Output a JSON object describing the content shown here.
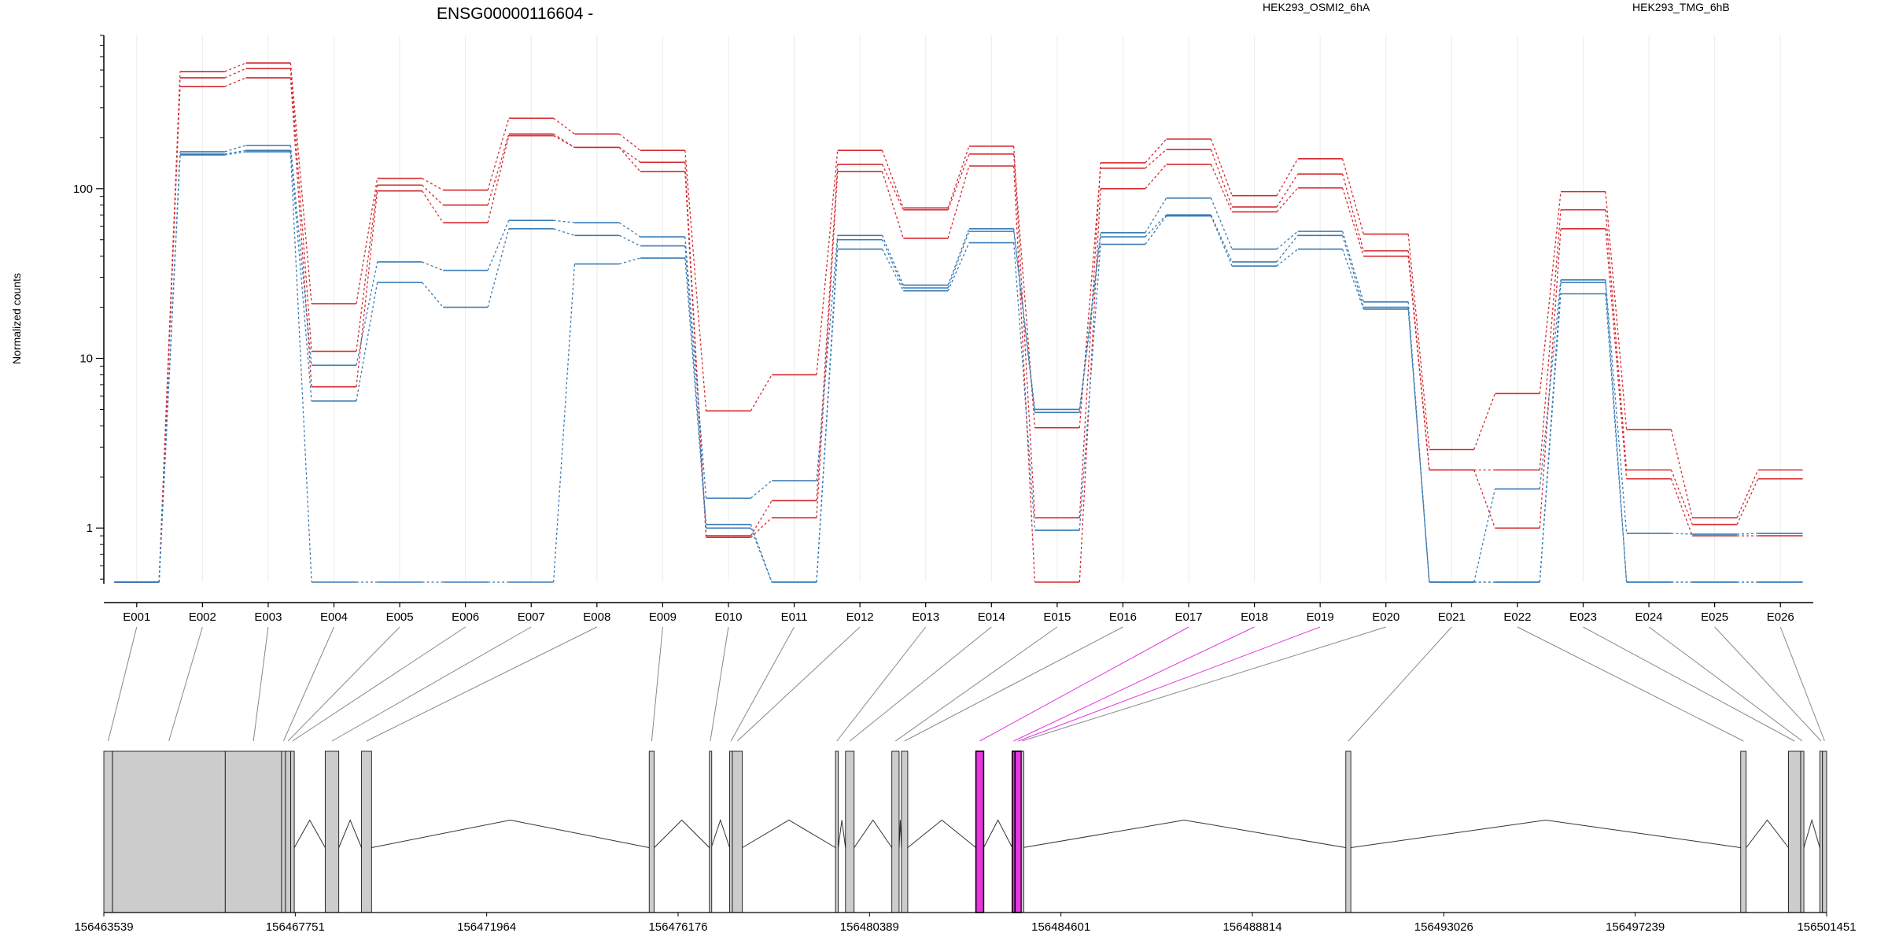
{
  "chart_data": {
    "type": "line",
    "title": "ENSG00000116604 -",
    "ylabel": "Normalized counts",
    "yscale": "log",
    "ylim": [
      0.48,
      800
    ],
    "yticks": [
      {
        "value": 1,
        "label": "1"
      },
      {
        "value": 10,
        "label": "10"
      },
      {
        "value": 100,
        "label": "100"
      }
    ],
    "categories": [
      "E001",
      "E002",
      "E003",
      "E004",
      "E005",
      "E006",
      "E007",
      "E008",
      "E009",
      "E010",
      "E011",
      "E012",
      "E013",
      "E014",
      "E015",
      "E016",
      "E017",
      "E018",
      "E019",
      "E020",
      "E021",
      "E022",
      "E023",
      "E024",
      "E025",
      "E026"
    ],
    "legend": [
      {
        "name": "HEK293_OSMI2_6hA",
        "color": "#d42a2f"
      },
      {
        "name": "HEK293_TMG_6hB",
        "color": "#3a7bb4"
      }
    ],
    "series": [
      {
        "group": "HEK293_OSMI2_6hA",
        "color": "#d42a2f",
        "values": [
          0.48,
          490,
          550,
          21,
          115,
          98,
          260,
          210,
          168,
          4.9,
          8.0,
          168,
          77,
          178,
          1.15,
          142,
          196,
          91,
          150,
          54,
          2.9,
          6.2,
          96,
          3.8,
          1.15,
          2.2
        ]
      },
      {
        "group": "HEK293_OSMI2_6hA",
        "color": "#d42a2f",
        "values": [
          0.48,
          450,
          510,
          11,
          105,
          80,
          210,
          175,
          143,
          0.9,
          1.45,
          139,
          75,
          160,
          3.9,
          132,
          170,
          78,
          122,
          43,
          2.2,
          2.2,
          75,
          2.2,
          1.05,
          1.95
        ]
      },
      {
        "group": "HEK293_OSMI2_6hA",
        "color": "#d42a2f",
        "values": [
          0.48,
          400,
          450,
          6.8,
          97,
          63,
          205,
          175,
          126,
          0.88,
          1.15,
          126,
          51,
          136,
          0.48,
          100,
          139,
          73,
          101,
          40,
          2.2,
          1.0,
          58,
          1.95,
          0.9,
          0.9
        ]
      },
      {
        "group": "HEK293_TMG_6hB",
        "color": "#3a7bb4",
        "values": [
          0.48,
          165,
          180,
          9.1,
          37,
          33,
          65,
          63,
          52,
          1.5,
          1.9,
          53,
          27,
          58,
          5.0,
          55,
          88,
          44,
          56,
          21.5,
          0.48,
          1.7,
          29,
          0.93,
          0.92,
          0.93
        ]
      },
      {
        "group": "HEK293_TMG_6hB",
        "color": "#3a7bb4",
        "values": [
          0.48,
          160,
          168,
          5.6,
          28,
          20,
          58,
          53,
          46,
          1.05,
          0.48,
          50,
          26,
          56,
          4.8,
          52,
          70,
          37,
          53,
          20,
          0.48,
          0.48,
          28,
          0.48,
          0.48,
          0.48
        ]
      },
      {
        "group": "HEK293_TMG_6hB",
        "color": "#3a7bb4",
        "values": [
          0.48,
          158,
          165,
          0.48,
          0.48,
          0.48,
          0.48,
          36,
          39,
          1.0,
          0.48,
          44,
          25,
          48,
          0.97,
          47,
          69,
          35,
          44,
          19.5,
          0.48,
          0.48,
          24,
          0.48,
          0.48,
          0.48
        ]
      }
    ],
    "genome": {
      "coord_range": [
        156463539,
        156501451
      ],
      "tick_labels": [
        "156463539",
        "156467751",
        "156471964",
        "156476176",
        "156480389",
        "156484601",
        "156488814",
        "156493026",
        "156497239",
        "156501451"
      ],
      "exons": [
        {
          "id": "E001",
          "start": 156463539,
          "end": 156463730
        },
        {
          "id": "E002",
          "start": 156463730,
          "end": 156466210
        },
        {
          "id": "E003",
          "start": 156466210,
          "end": 156467450
        },
        {
          "id": "E004",
          "start": 156467450,
          "end": 156467535
        },
        {
          "id": "E005",
          "start": 156467535,
          "end": 156467650
        },
        {
          "id": "E006",
          "start": 156467650,
          "end": 156467730
        },
        {
          "id": "E007",
          "start": 156468410,
          "end": 156468710
        },
        {
          "id": "E008",
          "start": 156469210,
          "end": 156469430
        },
        {
          "id": "E009",
          "start": 156475540,
          "end": 156475650
        },
        {
          "id": "E010",
          "start": 156476865,
          "end": 156476905
        },
        {
          "id": "E011",
          "start": 156477310,
          "end": 156477370
        },
        {
          "id": "E012",
          "start": 156477370,
          "end": 156477590
        },
        {
          "id": "E013",
          "start": 156479640,
          "end": 156479700
        },
        {
          "id": "E014",
          "start": 156479860,
          "end": 156480050
        },
        {
          "id": "E015",
          "start": 156480880,
          "end": 156481040
        },
        {
          "id": "E016",
          "start": 156481090,
          "end": 156481230
        },
        {
          "id": "E017",
          "start": 156482730,
          "end": 156482900
        },
        {
          "id": "E018",
          "start": 156483530,
          "end": 156483590
        },
        {
          "id": "E019",
          "start": 156483590,
          "end": 156483730
        },
        {
          "id": "E020",
          "start": 156483730,
          "end": 156483760
        },
        {
          "id": "E021",
          "start": 156490870,
          "end": 156490980
        },
        {
          "id": "E022",
          "start": 156499560,
          "end": 156499680
        },
        {
          "id": "E023",
          "start": 156500610,
          "end": 156500880
        },
        {
          "id": "E024",
          "start": 156500880,
          "end": 156500950
        },
        {
          "id": "E025",
          "start": 156501300,
          "end": 156501360
        },
        {
          "id": "E026",
          "start": 156501360,
          "end": 156501451
        }
      ],
      "highlighted": [
        "E017",
        "E018",
        "E019"
      ],
      "highlight_color": "#e636e0"
    }
  }
}
